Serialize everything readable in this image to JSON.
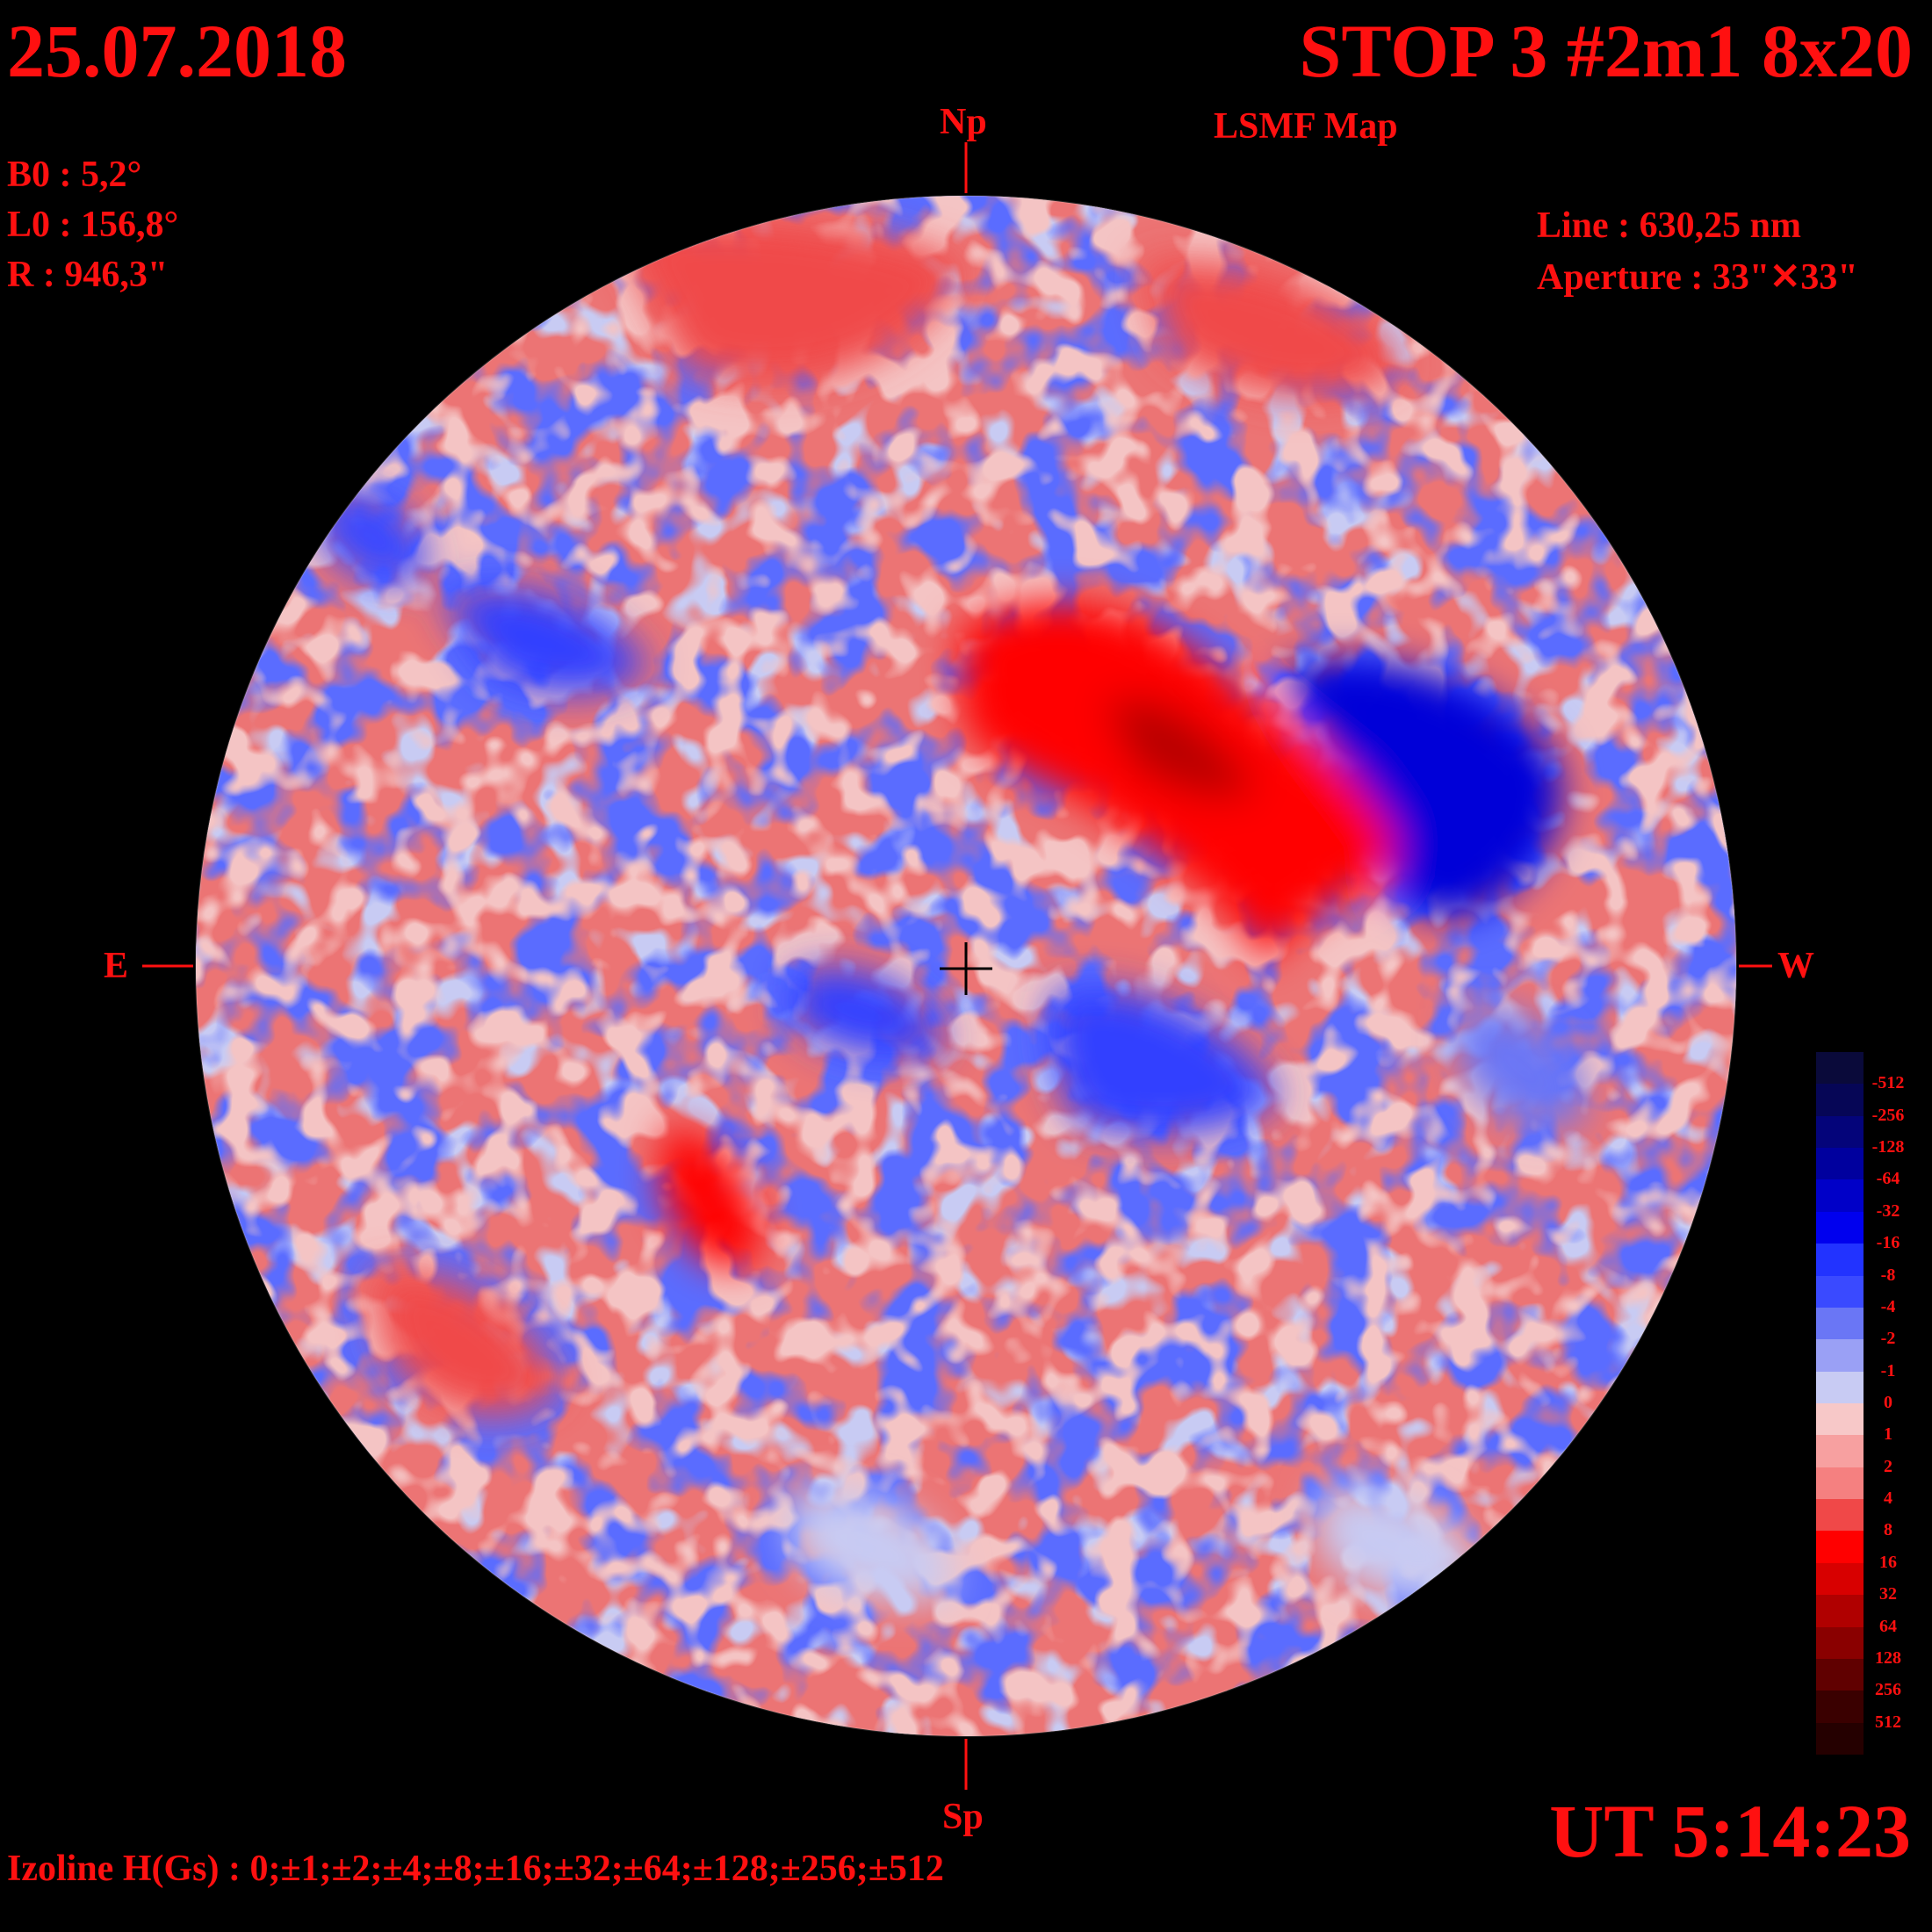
{
  "header": {
    "date": "25.07.2018",
    "title": "STOP 3 #2m1 8x20",
    "subtitle": "LSMF  Map"
  },
  "solar_params": {
    "b0": "B0 : 5,2°",
    "l0": "L0 : 156,8°",
    "r": "R  : 946,3\""
  },
  "instrument": {
    "line": "Line :  630,25 nm",
    "aperture": "Aperture : 33\"✕33\""
  },
  "directions": {
    "north": "Np",
    "south": "Sp",
    "east": "E",
    "west": "W"
  },
  "time": "UT 5:14:23",
  "izoline": "Izoline H(Gs) : 0;±1;±2;±4;±8;±16;±32;±64;±128;±256;±512",
  "colorbar": {
    "labels": [
      "-512",
      "-256",
      "-128",
      "-64",
      "-32",
      "-16",
      "-8",
      "-4",
      "-2",
      "-1",
      "0",
      "1",
      "2",
      "4",
      "8",
      "16",
      "32",
      "64",
      "128",
      "256",
      "512"
    ],
    "colors": [
      "#0a0a3a",
      "#060656",
      "#04047a",
      "#00009e",
      "#0000c8",
      "#0000ee",
      "#2233ff",
      "#3a4aff",
      "#6a76f5",
      "#9aa0f5",
      "#c8cbf3",
      "#f7c8c8",
      "#f7a0a0",
      "#f58080",
      "#f04848",
      "#ff0000",
      "#d80000",
      "#b00000",
      "#8a0000",
      "#600000",
      "#3a0000",
      "#250000"
    ]
  },
  "map": {
    "background_color": "#ec6f6f",
    "positive_color": "#ff0000",
    "negative_color": "#0000ee",
    "neutral_color": "#c8cbf3",
    "features": [
      {
        "type": "positive-strong",
        "label": ""
      },
      {
        "type": "negative-strong",
        "label": ""
      }
    ]
  }
}
